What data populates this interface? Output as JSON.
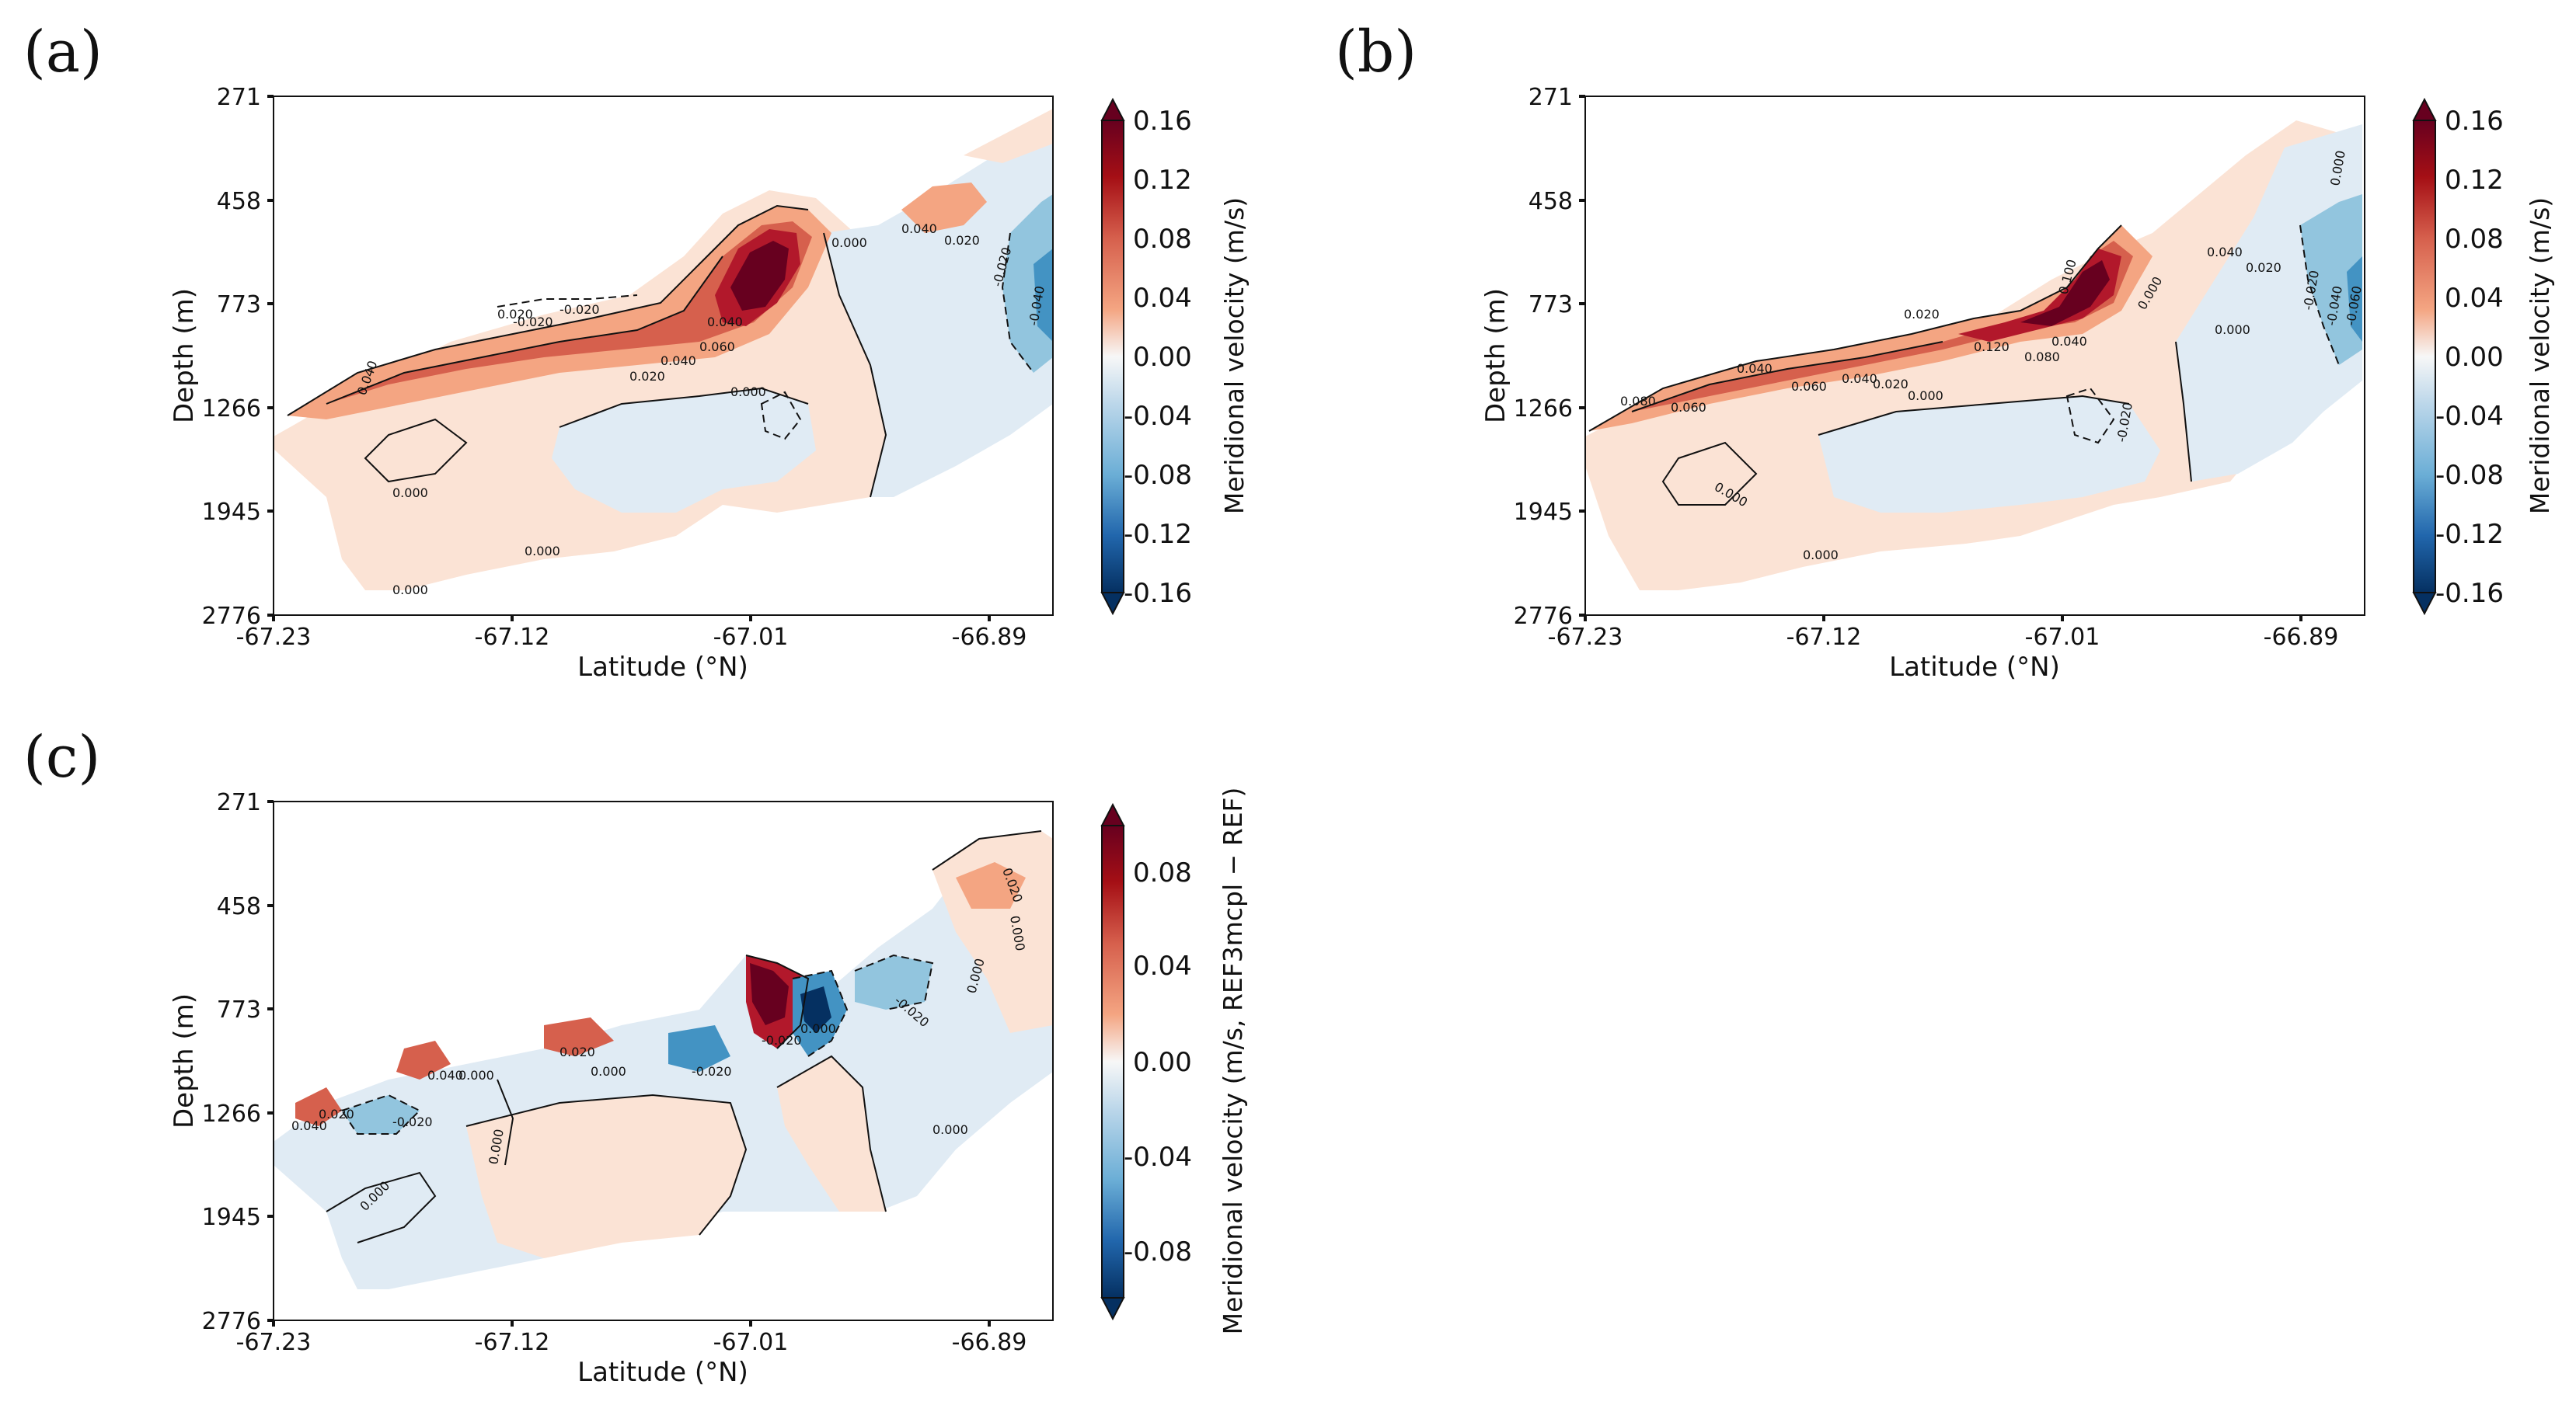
{
  "chart_data": [
    {
      "type": "contour",
      "panel_label": "(a)",
      "xlabel": "Latitude (°N)",
      "ylabel": "Depth (m)",
      "x_ticks": [
        "-67.23",
        "-67.12",
        "-67.01",
        "-66.89"
      ],
      "y_ticks": [
        "271",
        "458",
        "773",
        "1266",
        "1945",
        "2776"
      ],
      "xlim": [
        -67.23,
        -66.86
      ],
      "colorbar": {
        "label": "Meridional velocity (m/s)",
        "ticks": [
          "0.16",
          "0.12",
          "0.08",
          "0.04",
          "0.00",
          "-0.04",
          "-0.08",
          "-0.12",
          "-0.16"
        ],
        "range": [
          -0.16,
          0.16
        ]
      },
      "contour_labels": [
        "0.040",
        "0.020",
        "-0.020",
        "-0.020",
        "0.060",
        "0.040",
        "0.020",
        "0.000",
        "0.000",
        "0.000",
        "0.000",
        "0.000",
        "0.040",
        "0.020",
        "-0.020",
        "-0.040",
        "0.040"
      ]
    },
    {
      "type": "contour",
      "panel_label": "(b)",
      "xlabel": "Latitude (°N)",
      "ylabel": "Depth (m)",
      "x_ticks": [
        "-67.23",
        "-67.12",
        "-67.01",
        "-66.89"
      ],
      "y_ticks": [
        "271",
        "458",
        "773",
        "1266",
        "1945",
        "2776"
      ],
      "xlim": [
        -67.23,
        -66.86
      ],
      "colorbar": {
        "label": "Meridional velocity (m/s)",
        "ticks": [
          "0.16",
          "0.12",
          "0.08",
          "0.04",
          "0.00",
          "-0.04",
          "-0.08",
          "-0.12",
          "-0.16"
        ],
        "range": [
          -0.16,
          0.16
        ]
      },
      "contour_labels": [
        "0.080",
        "0.060",
        "0.040",
        "0.060",
        "0.040",
        "0.020",
        "0.000",
        "0.120",
        "0.080",
        "0.040",
        "0.100",
        "0.000",
        "0.000",
        "0.000",
        "0.020",
        "0.040",
        "0.020",
        "0.000",
        "-0.020",
        "0.000",
        "-0.020",
        "-0.040",
        "-0.060"
      ]
    },
    {
      "type": "contour",
      "panel_label": "(c)",
      "xlabel": "Latitude (°N)",
      "ylabel": "Depth (m)",
      "x_ticks": [
        "-67.23",
        "-67.12",
        "-67.01",
        "-66.89"
      ],
      "y_ticks": [
        "271",
        "458",
        "773",
        "1266",
        "1945",
        "2776"
      ],
      "xlim": [
        -67.23,
        -66.86
      ],
      "colorbar": {
        "label": "Meridional velocity (m/s, REF3mcpl − REF)",
        "ticks": [
          "0.08",
          "0.04",
          "0.00",
          "-0.04",
          "-0.08"
        ],
        "range": [
          -0.1,
          0.1
        ]
      },
      "contour_labels": [
        "0.040",
        "0.020",
        "-0.020",
        "0.040",
        "0.000",
        "0.020",
        "0.000",
        "-0.020",
        "-0.020",
        "0.000",
        "-0.020",
        "0.020",
        "0.000",
        "0.000",
        "0.000",
        "0.000",
        "0.000"
      ]
    }
  ],
  "colors": {
    "dark_red": "#67001f",
    "red2": "#b2182b",
    "red3": "#d6604d",
    "red4": "#f4a582",
    "pale_red": "#fbe3d5",
    "pale_blue": "#e0ebf4",
    "blue4": "#92c5de",
    "blue3": "#4393c3",
    "blue2": "#2166ac",
    "dark_blue": "#053061"
  }
}
